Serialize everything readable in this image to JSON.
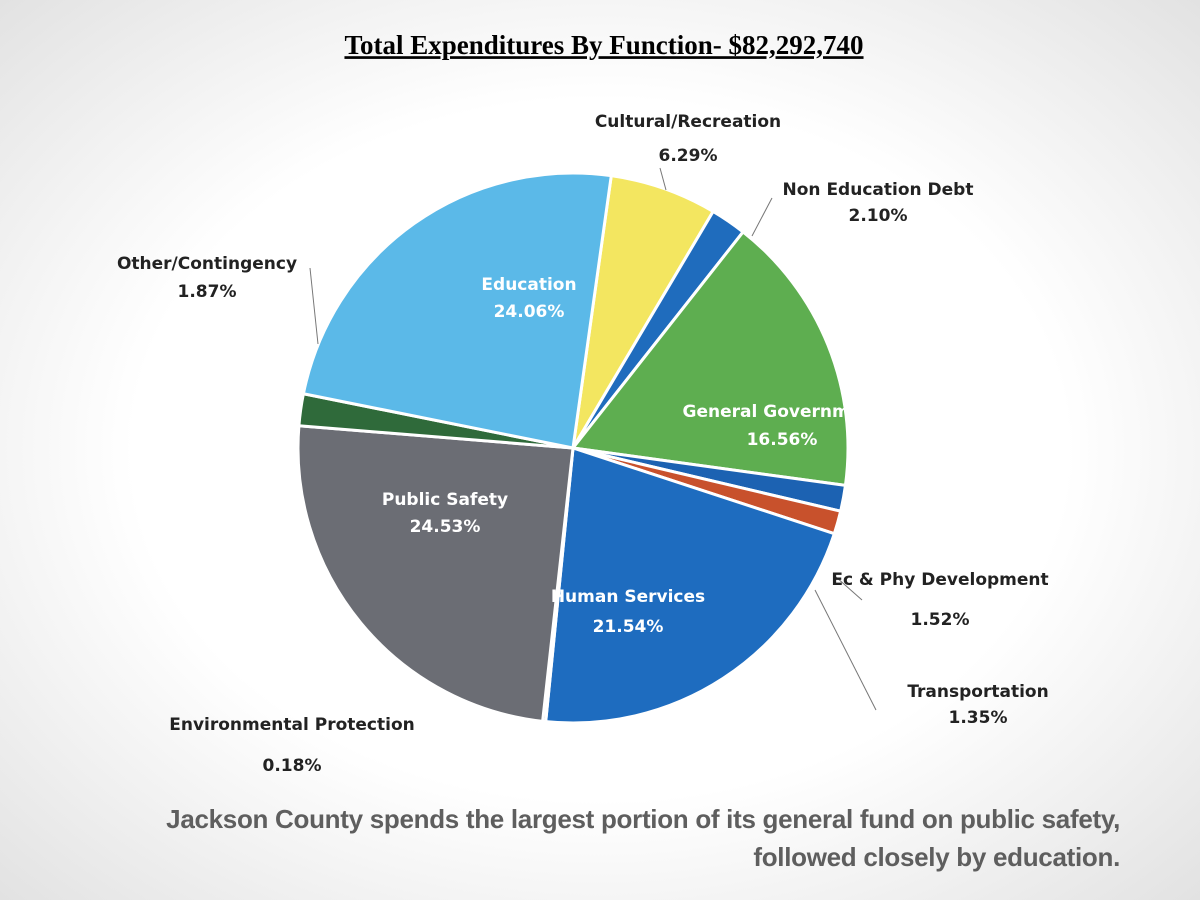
{
  "chart_data": {
    "type": "pie",
    "title": "Total Expenditures By Function- $82,292,740",
    "categories": [
      "Cultural/Recreation",
      "Non Education Debt",
      "General Government",
      "Ec & Phy Development",
      "Transportation",
      "Human Services",
      "Environmental Protection",
      "Public Safety",
      "Other/Contingency",
      "Education"
    ],
    "values": [
      6.29,
      2.1,
      16.56,
      1.52,
      1.35,
      21.54,
      0.18,
      24.53,
      1.87,
      24.06
    ],
    "value_labels": [
      "6.29%",
      "2.10%",
      "16.56%",
      "1.52%",
      "1.35%",
      "21.54%",
      "0.18%",
      "24.53%",
      "1.87%",
      "24.06%"
    ],
    "colors": [
      "#f3e660",
      "#1f6cbd",
      "#5eae50",
      "#1c62b2",
      "#c8512c",
      "#1e6cbf",
      "#2a2a2a",
      "#6b6d74",
      "#2f6a3a",
      "#5bb9e8"
    ]
  },
  "caption": "Jackson County spends the largest portion of its general fund on public safety, followed closely by education."
}
